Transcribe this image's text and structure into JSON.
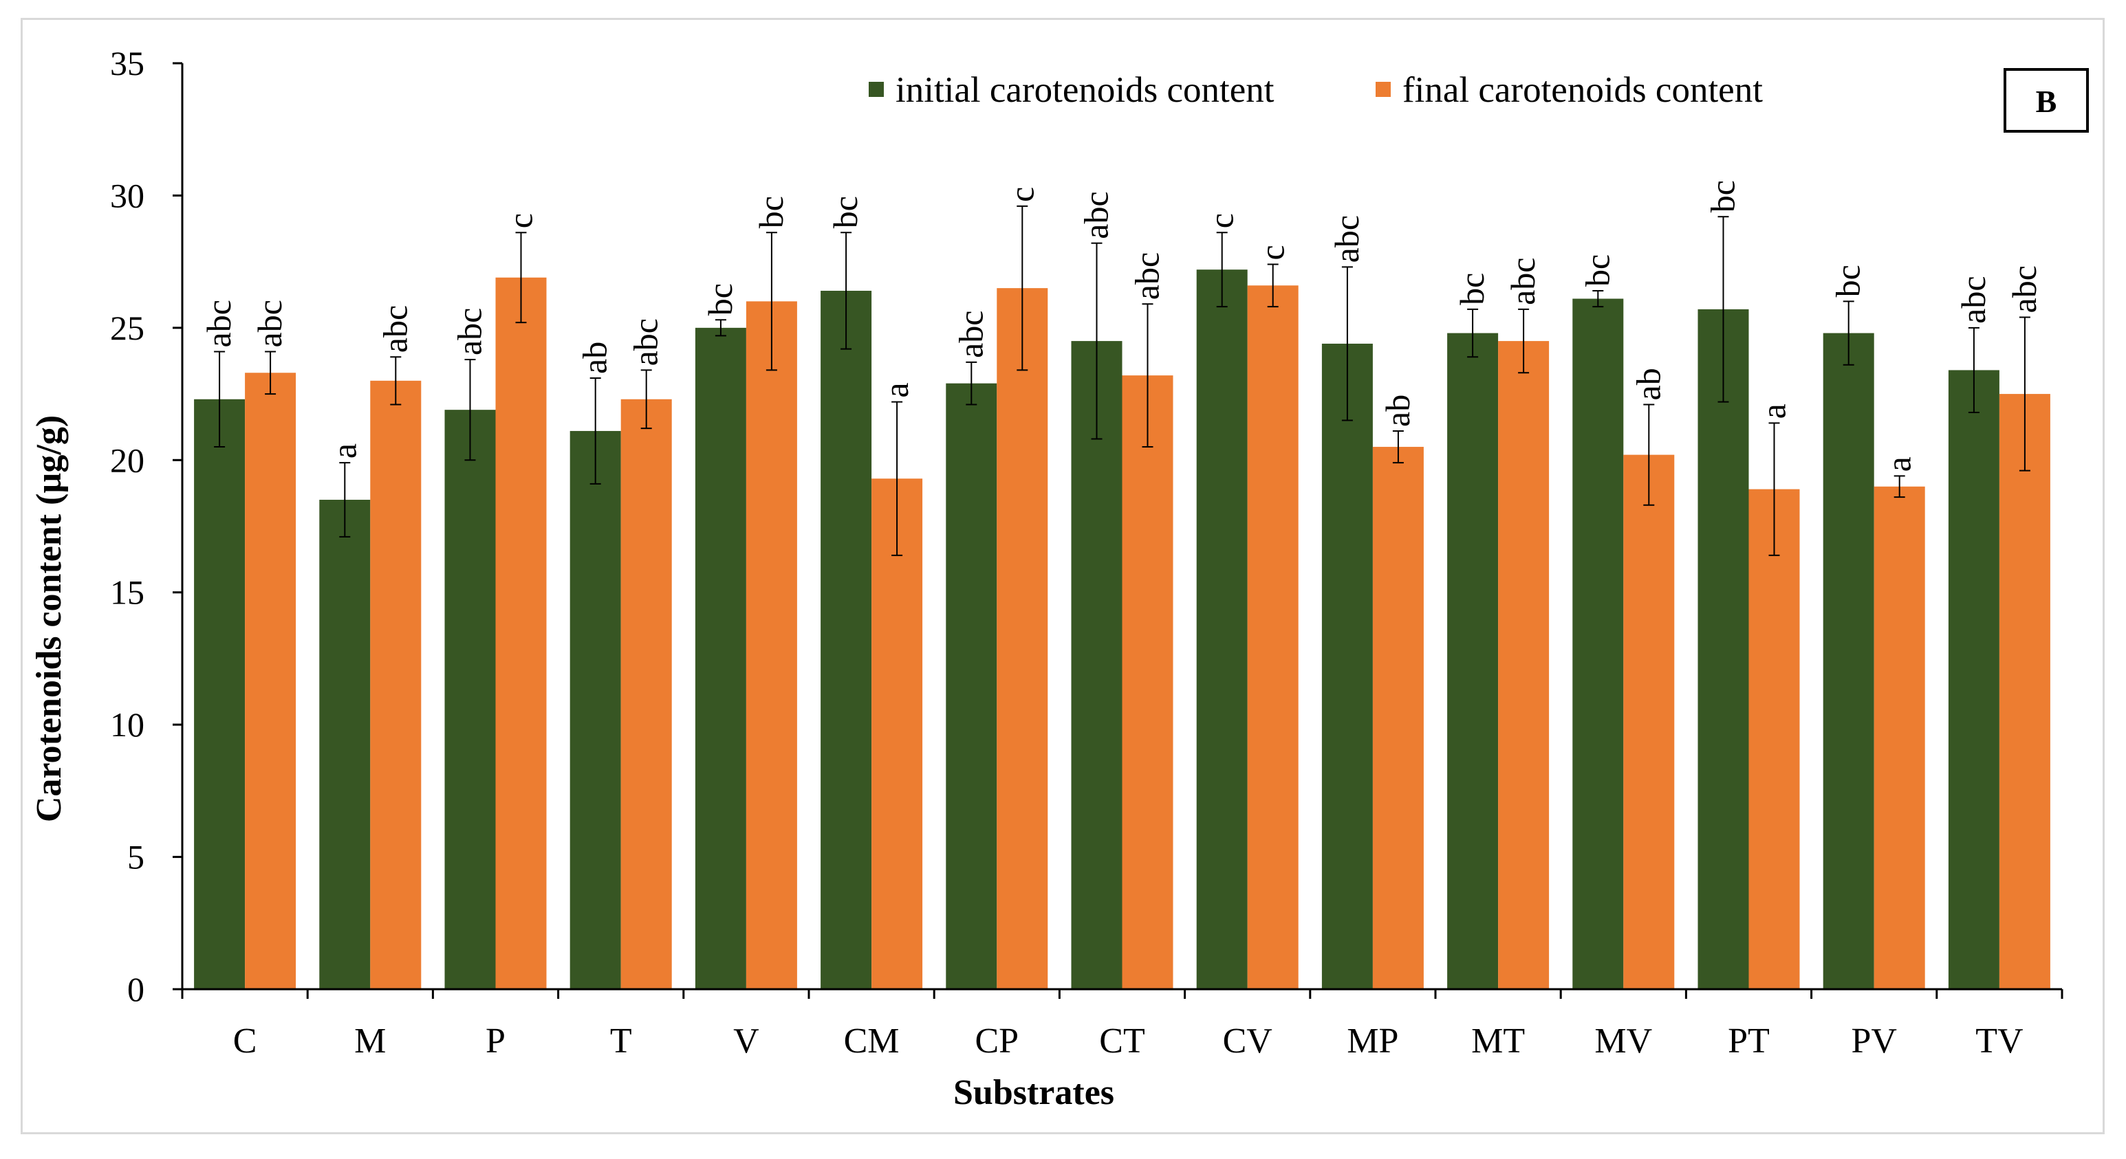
{
  "chart_data": {
    "type": "bar",
    "title": "",
    "panel_label": "B",
    "xlabel": "Substrates",
    "ylabel": "Carotenoids content  (µg/g)",
    "ylim": [
      0,
      35
    ],
    "yticks": [
      0,
      5,
      10,
      15,
      20,
      25,
      30,
      35
    ],
    "grid": false,
    "legend_position": "top-right",
    "categories": [
      "C",
      "M",
      "P",
      "T",
      "V",
      "CM",
      "CP",
      "CT",
      "CV",
      "MP",
      "MT",
      "MV",
      "PT",
      "PV",
      "TV"
    ],
    "series": [
      {
        "name": "initial carotenoids content",
        "color": "#375623",
        "values": [
          22.3,
          18.5,
          21.9,
          21.1,
          25.0,
          26.4,
          22.9,
          24.5,
          27.2,
          24.4,
          24.8,
          26.1,
          25.7,
          24.8,
          23.4
        ],
        "errors": [
          1.8,
          1.4,
          1.9,
          2.0,
          0.3,
          2.2,
          0.8,
          3.7,
          1.4,
          2.9,
          0.9,
          0.3,
          3.5,
          1.2,
          1.6
        ],
        "labels": [
          "abc",
          "a",
          "abc",
          "ab",
          "bc",
          "bc",
          "abc",
          "abc",
          "c",
          "abc",
          "bc",
          "bc",
          "bc",
          "bc",
          "abc"
        ]
      },
      {
        "name": "final carotenoids content",
        "color": "#ED7D31",
        "values": [
          23.3,
          23.0,
          26.9,
          22.3,
          26.0,
          19.3,
          26.5,
          23.2,
          26.6,
          20.5,
          24.5,
          20.2,
          18.9,
          19.0,
          22.5
        ],
        "errors": [
          0.8,
          0.9,
          1.7,
          1.1,
          2.6,
          2.9,
          3.1,
          2.7,
          0.8,
          0.6,
          1.2,
          1.9,
          2.5,
          0.4,
          2.9
        ],
        "labels": [
          "abc",
          "abc",
          "c",
          "abc",
          "bc",
          "a",
          "c",
          "abc",
          "c",
          "ab",
          "abc",
          "ab",
          "a",
          "a",
          "abc"
        ]
      }
    ]
  }
}
